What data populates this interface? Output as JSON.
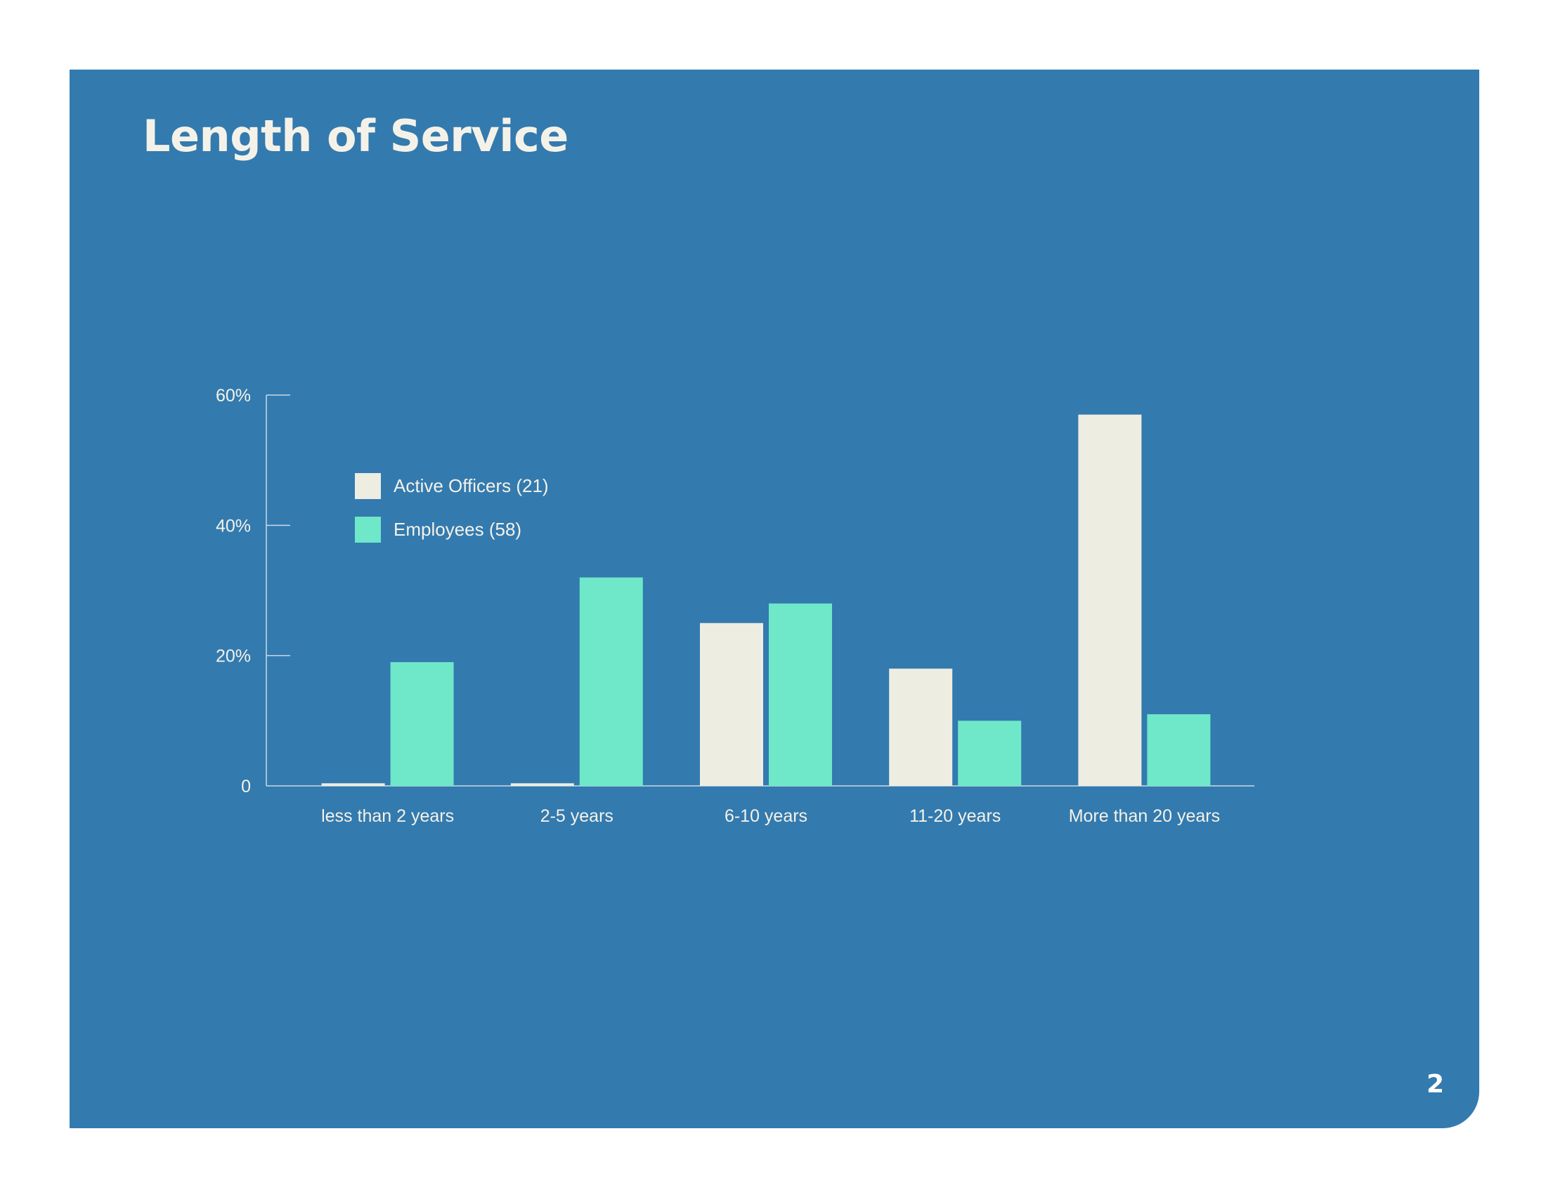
{
  "page": {
    "title": "Length of Service",
    "page_number": "2"
  },
  "colors": {
    "background": "#337AAF",
    "text": "#F4F2E8",
    "axis": "#C9D9E6"
  },
  "chart_data": {
    "type": "bar",
    "title": "",
    "xlabel": "",
    "ylabel": "",
    "categories": [
      "less than 2 years",
      "2-5 years",
      "6-10 years",
      "11-20 years",
      "More than 20 years"
    ],
    "series": [
      {
        "name": "Active Officers (21)",
        "color": "#EDEDE2",
        "values": [
          0.4,
          0.4,
          25.0,
          18.0,
          57.0
        ]
      },
      {
        "name": "Employees (58)",
        "color": "#6EE8C8",
        "values": [
          19.0,
          32.0,
          28.0,
          10.0,
          11.0
        ]
      }
    ],
    "ylim": [
      0,
      60
    ],
    "yticks": [
      0,
      20,
      40,
      60
    ],
    "ytick_labels": [
      "0",
      "20%",
      "40%",
      "60%"
    ],
    "grid": false,
    "legend_position": "top-left"
  }
}
